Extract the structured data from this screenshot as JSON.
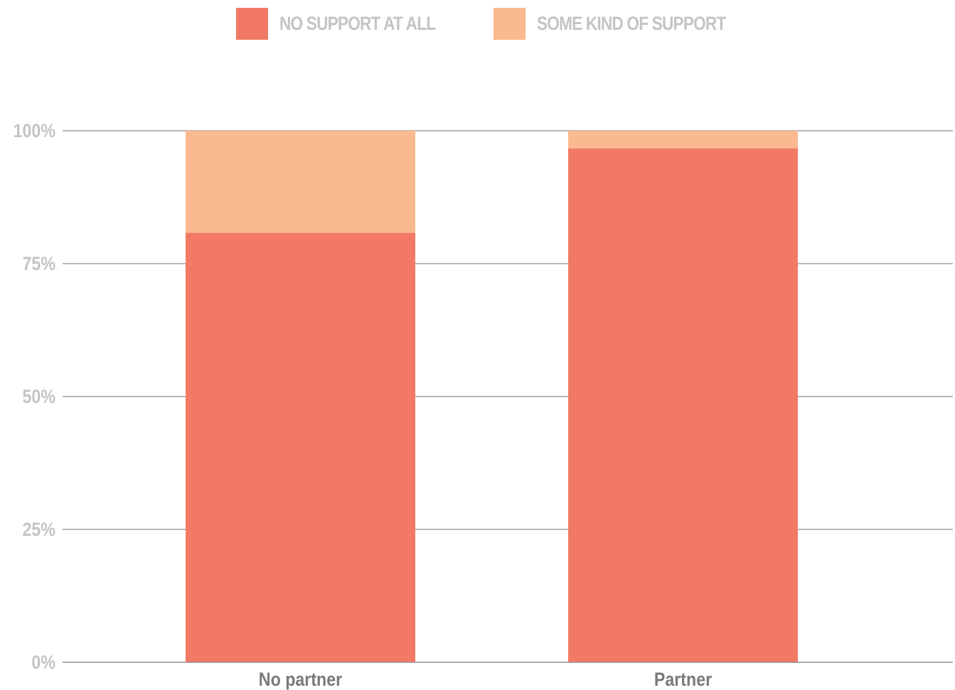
{
  "chart_data": {
    "type": "bar",
    "stacked": true,
    "categories": [
      "No partner",
      "Partner"
    ],
    "series": [
      {
        "name": "NO SUPPORT AT ALL",
        "values": [
          80.8,
          96.7
        ],
        "color": "#f27a65"
      },
      {
        "name": "SOME KIND OF SUPPORT",
        "values": [
          19.2,
          3.3
        ],
        "color": "#fbb98f"
      }
    ],
    "yticks": [
      "0%",
      "25%",
      "50%",
      "75%",
      "100%"
    ],
    "ytick_values": [
      0,
      25,
      50,
      75,
      100
    ],
    "ylim": [
      0,
      100
    ],
    "grid": true,
    "legend_position": "top-center",
    "title": "",
    "xlabel": "",
    "ylabel": ""
  }
}
